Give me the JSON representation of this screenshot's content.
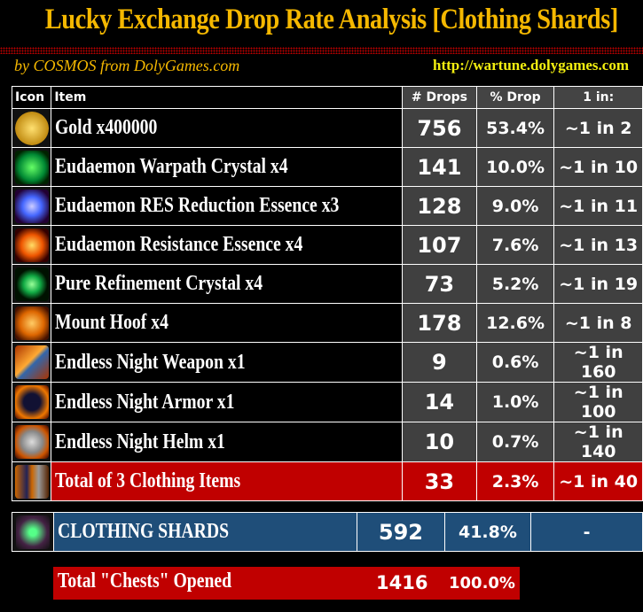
{
  "header": {
    "title": "Lucky Exchange Drop Rate Analysis [Clothing Shards]",
    "byline": "by COSMOS from DolyGames.com",
    "url": "http://wartune.dolygames.com"
  },
  "table": {
    "columns": [
      "Icon",
      "Item",
      "# Drops",
      "% Drop",
      "1 in:"
    ],
    "rows": [
      {
        "icon": "gold-coin-icon",
        "item": "Gold x400000",
        "drops": "756",
        "pct": "53.4%",
        "odds": "~1 in 2"
      },
      {
        "icon": "green-crystal-icon",
        "item": "Eudaemon Warpath Crystal x4",
        "drops": "141",
        "pct": "10.0%",
        "odds": "~1 in 10"
      },
      {
        "icon": "blue-essence-icon",
        "item": "Eudaemon RES Reduction Essence x3",
        "drops": "128",
        "pct": "9.0%",
        "odds": "~1 in 11"
      },
      {
        "icon": "orange-essence-icon",
        "item": "Eudaemon Resistance Essence x4",
        "drops": "107",
        "pct": "7.6%",
        "odds": "~1 in 13"
      },
      {
        "icon": "refinement-crystal-icon",
        "item": "Pure Refinement Crystal x4",
        "drops": "73",
        "pct": "5.2%",
        "odds": "~1 in 19"
      },
      {
        "icon": "horseshoe-icon",
        "item": "Mount Hoof x4",
        "drops": "178",
        "pct": "12.6%",
        "odds": "~1 in 8"
      },
      {
        "icon": "weapon-icon",
        "item": "Endless Night Weapon x1",
        "drops": "9",
        "pct": "0.6%",
        "odds": "~1 in 160"
      },
      {
        "icon": "armor-icon",
        "item": "Endless Night Armor x1",
        "drops": "14",
        "pct": "1.0%",
        "odds": "~1 in 100"
      },
      {
        "icon": "helm-icon",
        "item": "Endless Night Helm x1",
        "drops": "10",
        "pct": "0.7%",
        "odds": "~1 in 140"
      }
    ],
    "total_clothing": {
      "icon": "clothing-set-icon",
      "item": "Total of 3 Clothing Items",
      "drops": "33",
      "pct": "2.3%",
      "odds": "~1 in 40"
    }
  },
  "shards": {
    "icon": "shards-icon",
    "item": "CLOTHING SHARDS",
    "drops": "592",
    "pct": "41.8%",
    "odds": "-"
  },
  "total": {
    "label": "Total \"Chests\" Opened",
    "count": "1416",
    "pct": "100.0%"
  },
  "colors": {
    "title": "#f5b800",
    "red": "#c00000",
    "blue": "#1f4e79",
    "gray": "#404040"
  }
}
